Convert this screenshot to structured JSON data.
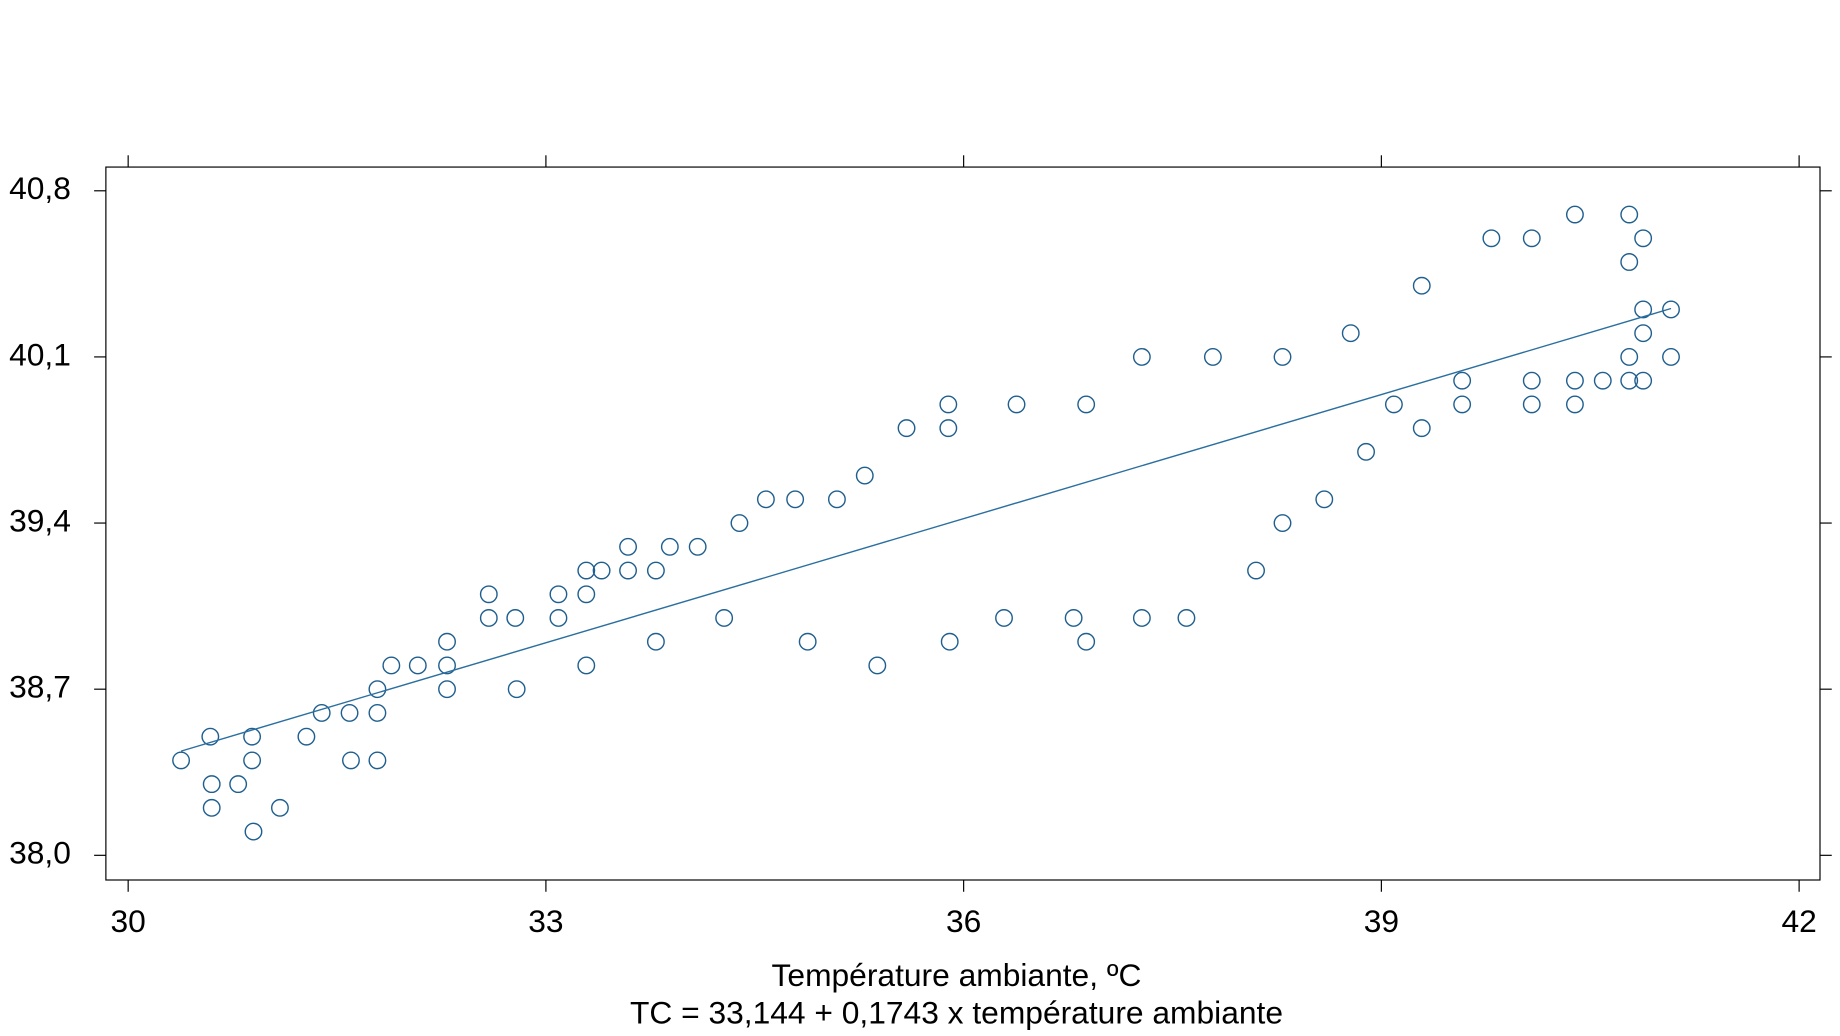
{
  "chart_data": {
    "type": "scatter",
    "xlabel": "Température ambiante, ºC",
    "note": "TC = 33,144 + 0,1743 x température ambiante",
    "xlim": [
      29.84,
      42.15
    ],
    "ylim": [
      37.896,
      40.9
    ],
    "xticks": [
      30,
      33,
      36,
      39,
      42
    ],
    "yticks": [
      {
        "value": 38.0,
        "label": "38,0"
      },
      {
        "value": 38.7,
        "label": "38,7"
      },
      {
        "value": 39.4,
        "label": "39,4"
      },
      {
        "value": 40.1,
        "label": "40,1"
      },
      {
        "value": 40.8,
        "label": "40,8"
      }
    ],
    "points": {
      "color": "#1f5f8f",
      "x": [
        30.38,
        30.59,
        30.6,
        30.6,
        30.79,
        30.89,
        30.89,
        30.9,
        31.09,
        31.28,
        31.39,
        31.59,
        31.6,
        31.79,
        31.79,
        31.79,
        31.89,
        32.08,
        32.29,
        32.29,
        32.29,
        32.59,
        32.59,
        32.78,
        32.79,
        33.09,
        33.09,
        33.29,
        33.29,
        33.29,
        33.4,
        33.59,
        33.59,
        33.79,
        33.79,
        33.89,
        34.09,
        34.28,
        34.39,
        34.58,
        34.79,
        34.88,
        35.09,
        35.29,
        35.38,
        35.59,
        35.89,
        35.89,
        35.9,
        36.29,
        36.38,
        36.79,
        36.88,
        36.88,
        37.28,
        37.28,
        37.6,
        37.79,
        38.1,
        38.29,
        38.29,
        38.59,
        38.78,
        38.89,
        39.09,
        39.29,
        39.29,
        39.58,
        39.58,
        39.79,
        40.08,
        40.08,
        40.08,
        40.39,
        40.39,
        40.39,
        40.59,
        40.78,
        40.78,
        40.78,
        40.78,
        40.88,
        40.88,
        40.88,
        40.88,
        41.08,
        41.08
      ],
      "y": [
        38.4,
        38.5,
        38.3,
        38.2,
        38.3,
        38.5,
        38.4,
        38.1,
        38.2,
        38.5,
        38.6,
        38.6,
        38.4,
        38.6,
        38.7,
        38.4,
        38.8,
        38.8,
        38.9,
        38.8,
        38.7,
        39.1,
        39.0,
        39.0,
        38.7,
        39.1,
        39.0,
        39.2,
        39.1,
        38.8,
        39.2,
        39.3,
        39.2,
        39.2,
        38.9,
        39.3,
        39.3,
        39.0,
        39.4,
        39.5,
        39.5,
        38.9,
        39.5,
        39.6,
        38.8,
        39.8,
        39.9,
        39.8,
        38.9,
        39.0,
        39.9,
        39.0,
        39.9,
        38.9,
        40.1,
        39.0,
        39.0,
        40.1,
        39.2,
        40.1,
        39.4,
        39.5,
        40.2,
        39.7,
        39.9,
        40.4,
        39.8,
        40.0,
        39.9,
        40.6,
        40.6,
        40.0,
        39.9,
        40.7,
        40.0,
        39.9,
        40.0,
        40.7,
        40.5,
        40.1,
        40.0,
        40.6,
        40.3,
        40.2,
        40.0,
        40.3,
        40.1
      ]
    },
    "fit_line": {
      "color": "#2a6f9f",
      "x": [
        30.38,
        41.08
      ],
      "y": [
        38.439,
        40.304
      ]
    }
  }
}
